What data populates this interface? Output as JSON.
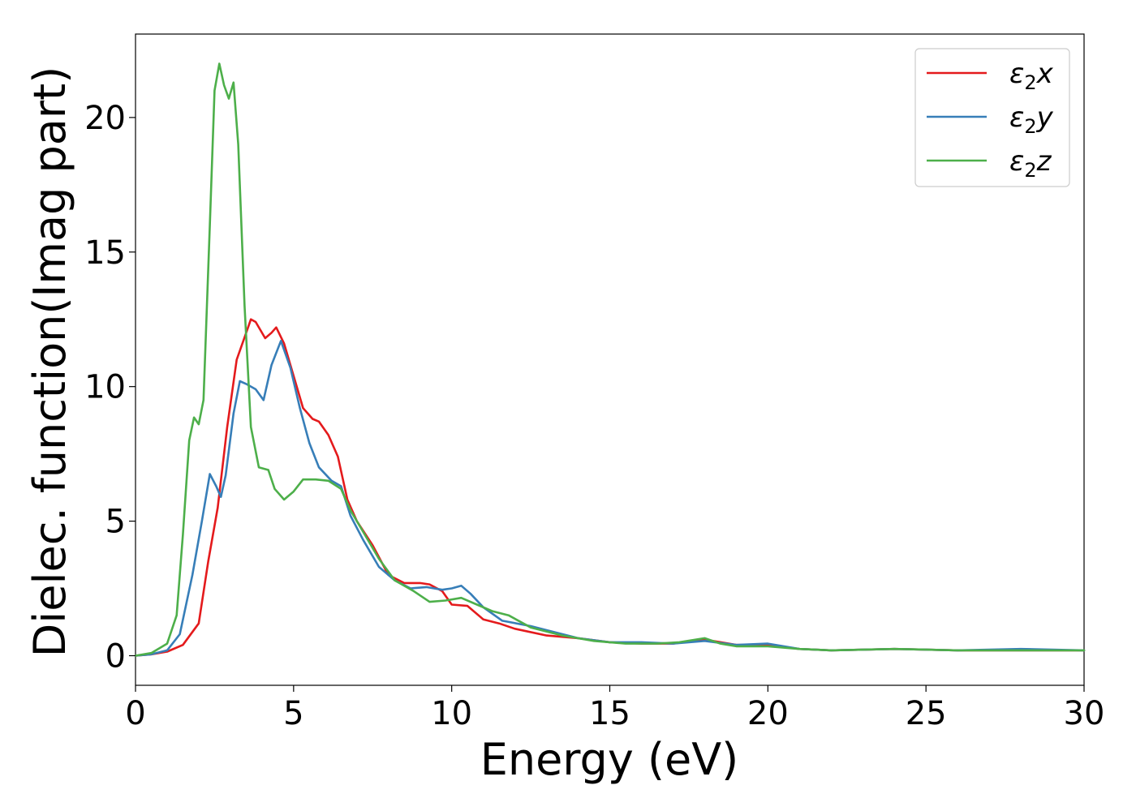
{
  "chart_data": {
    "type": "line",
    "xlabel": "Energy (eV)",
    "ylabel": "Dielec. function(Imag part)",
    "xlim": [
      0,
      30
    ],
    "ylim": [
      -1.1,
      23.1
    ],
    "xticks": [
      0,
      5,
      10,
      15,
      20,
      25,
      30
    ],
    "yticks": [
      0,
      5,
      10,
      15,
      20
    ],
    "grid": false,
    "legend_position": "top-right",
    "series": [
      {
        "name_base": "ε",
        "name_sub": "2",
        "name_tail": "x",
        "color": "#e41a1c",
        "points": [
          [
            0,
            0
          ],
          [
            0.5,
            0.05
          ],
          [
            1,
            0.15
          ],
          [
            1.5,
            0.4
          ],
          [
            2,
            1.2
          ],
          [
            2.3,
            3.5
          ],
          [
            2.6,
            5.5
          ],
          [
            2.9,
            8.5
          ],
          [
            3.2,
            11.0
          ],
          [
            3.5,
            12.0
          ],
          [
            3.65,
            12.5
          ],
          [
            3.8,
            12.4
          ],
          [
            4.1,
            11.8
          ],
          [
            4.3,
            12.0
          ],
          [
            4.45,
            12.2
          ],
          [
            4.7,
            11.6
          ],
          [
            5.0,
            10.4
          ],
          [
            5.3,
            9.2
          ],
          [
            5.6,
            8.8
          ],
          [
            5.8,
            8.7
          ],
          [
            6.1,
            8.2
          ],
          [
            6.4,
            7.4
          ],
          [
            6.7,
            5.8
          ],
          [
            7.0,
            5.0
          ],
          [
            7.5,
            4.1
          ],
          [
            8.0,
            3.0
          ],
          [
            8.5,
            2.7
          ],
          [
            9.0,
            2.7
          ],
          [
            9.3,
            2.65
          ],
          [
            9.7,
            2.4
          ],
          [
            10.0,
            1.9
          ],
          [
            10.5,
            1.85
          ],
          [
            11.0,
            1.35
          ],
          [
            11.5,
            1.2
          ],
          [
            12.0,
            1.0
          ],
          [
            13.0,
            0.75
          ],
          [
            14.0,
            0.65
          ],
          [
            15.0,
            0.5
          ],
          [
            16.0,
            0.45
          ],
          [
            17.0,
            0.45
          ],
          [
            18.0,
            0.6
          ],
          [
            19.0,
            0.4
          ],
          [
            20.0,
            0.4
          ],
          [
            21.0,
            0.25
          ],
          [
            22.0,
            0.2
          ],
          [
            24.0,
            0.25
          ],
          [
            26.0,
            0.2
          ],
          [
            28.0,
            0.2
          ],
          [
            30.0,
            0.2
          ]
        ]
      },
      {
        "name_base": "ε",
        "name_sub": "2",
        "name_tail": "y",
        "color": "#377eb8",
        "points": [
          [
            0,
            0
          ],
          [
            0.5,
            0.05
          ],
          [
            1,
            0.2
          ],
          [
            1.4,
            0.8
          ],
          [
            1.8,
            3.0
          ],
          [
            2.1,
            5.0
          ],
          [
            2.35,
            6.75
          ],
          [
            2.55,
            6.3
          ],
          [
            2.7,
            5.9
          ],
          [
            2.85,
            6.7
          ],
          [
            3.1,
            9.0
          ],
          [
            3.3,
            10.2
          ],
          [
            3.5,
            10.1
          ],
          [
            3.8,
            9.9
          ],
          [
            4.05,
            9.5
          ],
          [
            4.3,
            10.8
          ],
          [
            4.6,
            11.7
          ],
          [
            4.9,
            10.7
          ],
          [
            5.2,
            9.2
          ],
          [
            5.5,
            7.9
          ],
          [
            5.8,
            7.0
          ],
          [
            6.2,
            6.5
          ],
          [
            6.5,
            6.3
          ],
          [
            6.8,
            5.2
          ],
          [
            7.2,
            4.3
          ],
          [
            7.7,
            3.3
          ],
          [
            8.2,
            2.8
          ],
          [
            8.7,
            2.5
          ],
          [
            9.2,
            2.55
          ],
          [
            9.7,
            2.45
          ],
          [
            10.0,
            2.5
          ],
          [
            10.3,
            2.6
          ],
          [
            10.6,
            2.3
          ],
          [
            11.0,
            1.8
          ],
          [
            11.6,
            1.3
          ],
          [
            12.5,
            1.1
          ],
          [
            13.0,
            0.95
          ],
          [
            14.0,
            0.65
          ],
          [
            15.0,
            0.5
          ],
          [
            16.0,
            0.5
          ],
          [
            17.0,
            0.45
          ],
          [
            18.0,
            0.55
          ],
          [
            19.0,
            0.4
          ],
          [
            20.0,
            0.45
          ],
          [
            21.0,
            0.25
          ],
          [
            22.0,
            0.2
          ],
          [
            24.0,
            0.25
          ],
          [
            26.0,
            0.2
          ],
          [
            28.0,
            0.25
          ],
          [
            30.0,
            0.2
          ]
        ]
      },
      {
        "name_base": "ε",
        "name_sub": "2",
        "name_tail": "z",
        "color": "#4daf4a",
        "points": [
          [
            0,
            0
          ],
          [
            0.5,
            0.1
          ],
          [
            1.0,
            0.45
          ],
          [
            1.3,
            1.5
          ],
          [
            1.5,
            4.5
          ],
          [
            1.7,
            8.0
          ],
          [
            1.85,
            8.85
          ],
          [
            2.0,
            8.6
          ],
          [
            2.15,
            9.5
          ],
          [
            2.35,
            16.0
          ],
          [
            2.5,
            21.0
          ],
          [
            2.65,
            22.0
          ],
          [
            2.8,
            21.2
          ],
          [
            2.95,
            20.7
          ],
          [
            3.1,
            21.3
          ],
          [
            3.25,
            19.0
          ],
          [
            3.45,
            13.0
          ],
          [
            3.65,
            8.5
          ],
          [
            3.9,
            7.0
          ],
          [
            4.2,
            6.9
          ],
          [
            4.4,
            6.2
          ],
          [
            4.7,
            5.8
          ],
          [
            5.0,
            6.1
          ],
          [
            5.3,
            6.55
          ],
          [
            5.7,
            6.55
          ],
          [
            6.1,
            6.5
          ],
          [
            6.5,
            6.2
          ],
          [
            6.8,
            5.4
          ],
          [
            7.2,
            4.6
          ],
          [
            7.7,
            3.6
          ],
          [
            8.2,
            2.8
          ],
          [
            8.8,
            2.4
          ],
          [
            9.3,
            2.0
          ],
          [
            9.8,
            2.05
          ],
          [
            10.3,
            2.15
          ],
          [
            10.8,
            1.9
          ],
          [
            11.3,
            1.65
          ],
          [
            11.8,
            1.5
          ],
          [
            12.5,
            1.05
          ],
          [
            13.5,
            0.75
          ],
          [
            14.5,
            0.55
          ],
          [
            15.5,
            0.45
          ],
          [
            16.5,
            0.45
          ],
          [
            17.2,
            0.5
          ],
          [
            18.0,
            0.65
          ],
          [
            18.5,
            0.45
          ],
          [
            19.0,
            0.35
          ],
          [
            20.0,
            0.35
          ],
          [
            21.0,
            0.25
          ],
          [
            22.0,
            0.2
          ],
          [
            24.0,
            0.25
          ],
          [
            26.0,
            0.2
          ],
          [
            28.0,
            0.2
          ],
          [
            30.0,
            0.2
          ]
        ]
      }
    ]
  }
}
